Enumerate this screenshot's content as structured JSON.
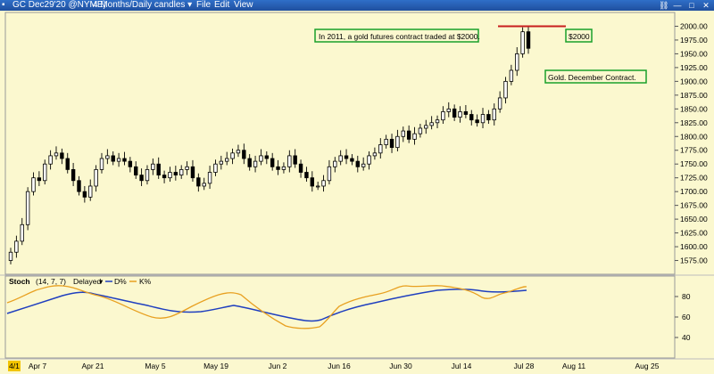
{
  "window": {
    "symbol_label": "GC Dec29'20 @NYME)",
    "period_label": "4 Months/Daily candles",
    "menu": [
      "File",
      "Edit",
      "View"
    ]
  },
  "annotations": {
    "text_2011": "In 2011, a gold futures contract traded at $2000.",
    "price_label": "$2000",
    "contract_label": "Gold. December Contract.",
    "resistance_price": 2000
  },
  "chart_data": [
    {
      "type": "candlestick",
      "title": "",
      "ylim": [
        1550,
        2025
      ],
      "yticks": [
        1575,
        1600,
        1625,
        1650,
        1675,
        1700,
        1725,
        1750,
        1775,
        1800,
        1825,
        1850,
        1875,
        1900,
        1925,
        1950,
        1975,
        2000
      ],
      "ytick_labels": [
        "1575.00",
        "1600.00",
        "1625.00",
        "1650.00",
        "1675.00",
        "1700.00",
        "1725.00",
        "1750.00",
        "1775.00",
        "1800.00",
        "1825.00",
        "1850.00",
        "1875.00",
        "1900.00",
        "1925.00",
        "1950.00",
        "1975.00",
        "2000.00"
      ],
      "xtick_labels": [
        "4/1",
        "Apr 7",
        "Apr 21",
        "May 5",
        "May 19",
        "Jun 2",
        "Jun 16",
        "Jun 30",
        "Jul 14",
        "Jul 28",
        "Aug 11",
        "Aug 25"
      ],
      "closes": [
        1590,
        1610,
        1640,
        1700,
        1725,
        1720,
        1750,
        1765,
        1770,
        1760,
        1740,
        1720,
        1700,
        1690,
        1710,
        1740,
        1760,
        1765,
        1755,
        1760,
        1755,
        1745,
        1730,
        1720,
        1740,
        1750,
        1730,
        1725,
        1735,
        1730,
        1740,
        1745,
        1725,
        1710,
        1715,
        1735,
        1750,
        1755,
        1760,
        1770,
        1775,
        1760,
        1745,
        1755,
        1765,
        1760,
        1745,
        1740,
        1745,
        1765,
        1750,
        1735,
        1725,
        1710,
        1710,
        1720,
        1745,
        1755,
        1765,
        1760,
        1755,
        1745,
        1750,
        1765,
        1770,
        1785,
        1795,
        1780,
        1800,
        1810,
        1795,
        1805,
        1815,
        1820,
        1825,
        1830,
        1845,
        1850,
        1835,
        1845,
        1840,
        1830,
        1825,
        1840,
        1830,
        1850,
        1870,
        1900,
        1920,
        1950,
        1990,
        1960
      ]
    },
    {
      "type": "line",
      "title": "Stoch",
      "params": "(14, 7, 7)",
      "mode": "Delayed",
      "ylim": [
        20,
        100
      ],
      "yticks": [
        40,
        60,
        80
      ],
      "series": [
        {
          "name": "D%",
          "color": "#1f3fbf"
        },
        {
          "name": "K%",
          "color": "#e8a020"
        }
      ]
    }
  ]
}
